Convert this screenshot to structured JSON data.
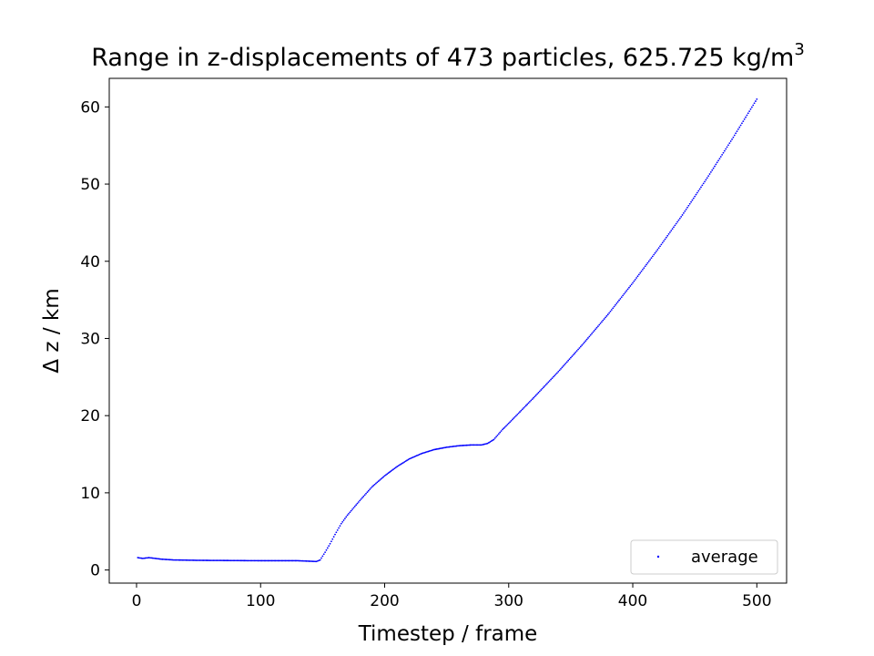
{
  "chart_data": {
    "type": "scatter",
    "title": "Range in z-displacements of 473 particles, 625.725 kg/m",
    "title_superscript": "3",
    "xlabel": "Timestep / frame",
    "ylabel": "Δ z / km",
    "xlim": [
      -22,
      524
    ],
    "ylim": [
      -1.7,
      63.7
    ],
    "xticks": [
      0,
      100,
      200,
      300,
      400,
      500
    ],
    "yticks": [
      0,
      10,
      20,
      30,
      40,
      50,
      60
    ],
    "grid": false,
    "legend_position": "lower-right",
    "marker_color": "#0000ff",
    "series": [
      {
        "name": "average",
        "points": [
          [
            1,
            1.6
          ],
          [
            5,
            1.5
          ],
          [
            10,
            1.6
          ],
          [
            15,
            1.5
          ],
          [
            20,
            1.4
          ],
          [
            30,
            1.3
          ],
          [
            50,
            1.25
          ],
          [
            100,
            1.2
          ],
          [
            130,
            1.2
          ],
          [
            145,
            1.1
          ],
          [
            148,
            1.3
          ],
          [
            152,
            2.3
          ],
          [
            156,
            3.4
          ],
          [
            160,
            4.6
          ],
          [
            165,
            6.0
          ],
          [
            170,
            7.1
          ],
          [
            180,
            9.0
          ],
          [
            190,
            10.8
          ],
          [
            200,
            12.2
          ],
          [
            210,
            13.4
          ],
          [
            220,
            14.4
          ],
          [
            230,
            15.1
          ],
          [
            240,
            15.6
          ],
          [
            250,
            15.9
          ],
          [
            260,
            16.1
          ],
          [
            270,
            16.2
          ],
          [
            278,
            16.2
          ],
          [
            283,
            16.4
          ],
          [
            288,
            16.9
          ],
          [
            295,
            18.2
          ],
          [
            300,
            19.0
          ],
          [
            320,
            22.3
          ],
          [
            340,
            25.7
          ],
          [
            360,
            29.3
          ],
          [
            380,
            33.1
          ],
          [
            400,
            37.2
          ],
          [
            420,
            41.5
          ],
          [
            440,
            46.0
          ],
          [
            460,
            50.8
          ],
          [
            480,
            55.8
          ],
          [
            500,
            61.0
          ]
        ]
      }
    ]
  }
}
